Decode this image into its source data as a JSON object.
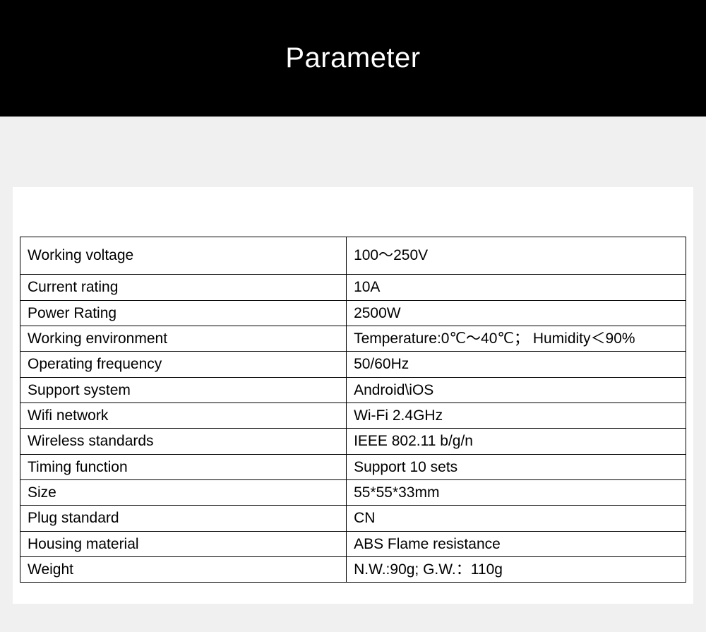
{
  "banner": {
    "title": "Parameter",
    "background_color": "#000000",
    "title_color": "#ffffff",
    "title_fontsize": 40,
    "title_fontweight": 300
  },
  "page": {
    "background_color": "#f0f0f0",
    "card_background_color": "#ffffff"
  },
  "table": {
    "type": "table",
    "border_color": "#000000",
    "border_width": 1.5,
    "cell_fontsize": 21,
    "cell_text_color": "#000000",
    "label_col_width_pct": 49,
    "value_col_width_pct": 51,
    "first_row_extra_padding": true,
    "rows": [
      {
        "label": "Working voltage",
        "value": "100～250V"
      },
      {
        "label": "Current rating",
        "value": "10A"
      },
      {
        "label": "Power Rating",
        "value": "2500W"
      },
      {
        "label": "Working environment",
        "value": "Temperature:0℃～40℃；  Humidity＜90%"
      },
      {
        "label": "Operating frequency",
        "value": "50/60Hz"
      },
      {
        "label": "Support system",
        "value": "Android\\iOS"
      },
      {
        "label": "Wifi network",
        "value": "Wi-Fi 2.4GHz"
      },
      {
        "label": "Wireless standards",
        "value": "IEEE 802.11 b/g/n"
      },
      {
        "label": "Timing function",
        "value": "Support 10 sets"
      },
      {
        "label": "Size",
        "value": "55*55*33mm"
      },
      {
        "label": "Plug standard",
        "value": "CN"
      },
      {
        "label": "Housing material",
        "value": "ABS Flame resistance"
      },
      {
        "label": "Weight",
        "value": "N.W.:90g; G.W.：110g"
      }
    ]
  }
}
